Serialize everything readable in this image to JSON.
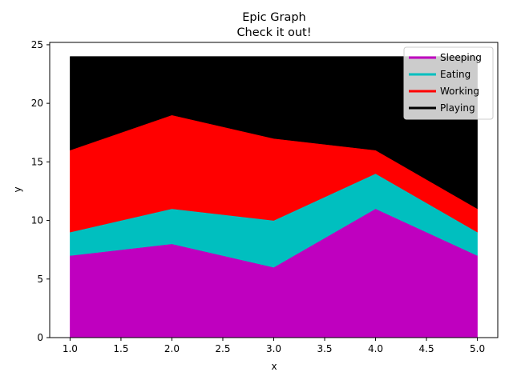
{
  "chart_data": {
    "type": "area",
    "stacked": true,
    "title": "Epic Graph",
    "subtitle": "Check it out!",
    "xlabel": "x",
    "ylabel": "y",
    "x": [
      1,
      2,
      3,
      4,
      5
    ],
    "xlim": [
      0.8,
      5.2
    ],
    "ylim": [
      0,
      25.2
    ],
    "xticks": [
      "1.0",
      "1.5",
      "2.0",
      "2.5",
      "3.0",
      "3.5",
      "4.0",
      "4.5",
      "5.0"
    ],
    "yticks": [
      "0",
      "5",
      "10",
      "15",
      "20",
      "25"
    ],
    "grid": false,
    "legend_position": "top-right",
    "series": [
      {
        "name": "Sleeping",
        "color": "#bf00bf",
        "values": [
          7,
          8,
          6,
          11,
          7
        ]
      },
      {
        "name": "Eating",
        "color": "#00bfbf",
        "values": [
          2,
          3,
          4,
          3,
          2
        ]
      },
      {
        "name": "Working",
        "color": "#ff0000",
        "values": [
          7,
          8,
          7,
          2,
          2
        ]
      },
      {
        "name": "Playing",
        "color": "#000000",
        "values": [
          8,
          5,
          7,
          8,
          13
        ]
      }
    ]
  }
}
